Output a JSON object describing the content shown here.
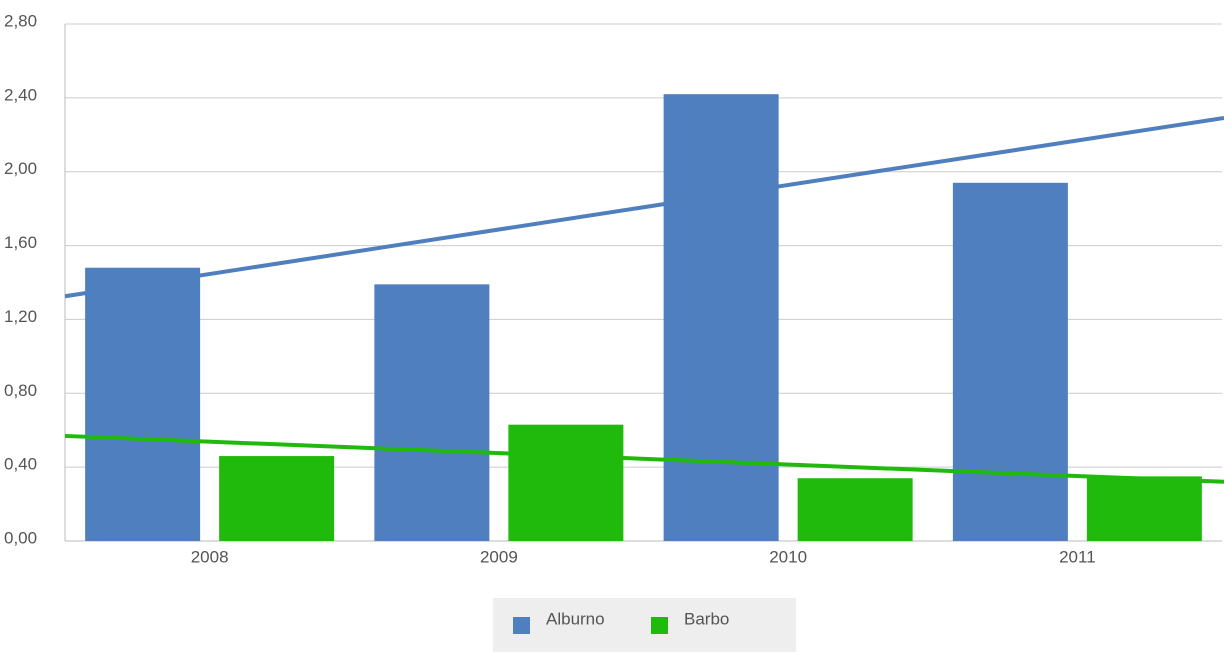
{
  "chart_data": {
    "type": "bar",
    "categories": [
      "2008",
      "2009",
      "2010",
      "2011"
    ],
    "series": [
      {
        "name": "Alburno",
        "color": "#4f7fbe",
        "values": [
          1.48,
          1.39,
          2.42,
          1.94
        ]
      },
      {
        "name": "Barbo",
        "color": "#1fba0b",
        "values": [
          0.46,
          0.63,
          0.34,
          0.35
        ]
      }
    ],
    "ylim": [
      0,
      2.8
    ],
    "yticks": [
      {
        "value": 0,
        "label": "0,00"
      },
      {
        "value": 0.4,
        "label": "0,40"
      },
      {
        "value": 0.8,
        "label": "0,80"
      },
      {
        "value": 1.2,
        "label": "1,20"
      },
      {
        "value": 1.6,
        "label": "1,60"
      },
      {
        "value": 2.0,
        "label": "2,00"
      },
      {
        "value": 2.4,
        "label": "2,40"
      },
      {
        "value": 2.8,
        "label": "2,80"
      }
    ],
    "grid": true,
    "trendline": true,
    "legend": "bottom"
  }
}
